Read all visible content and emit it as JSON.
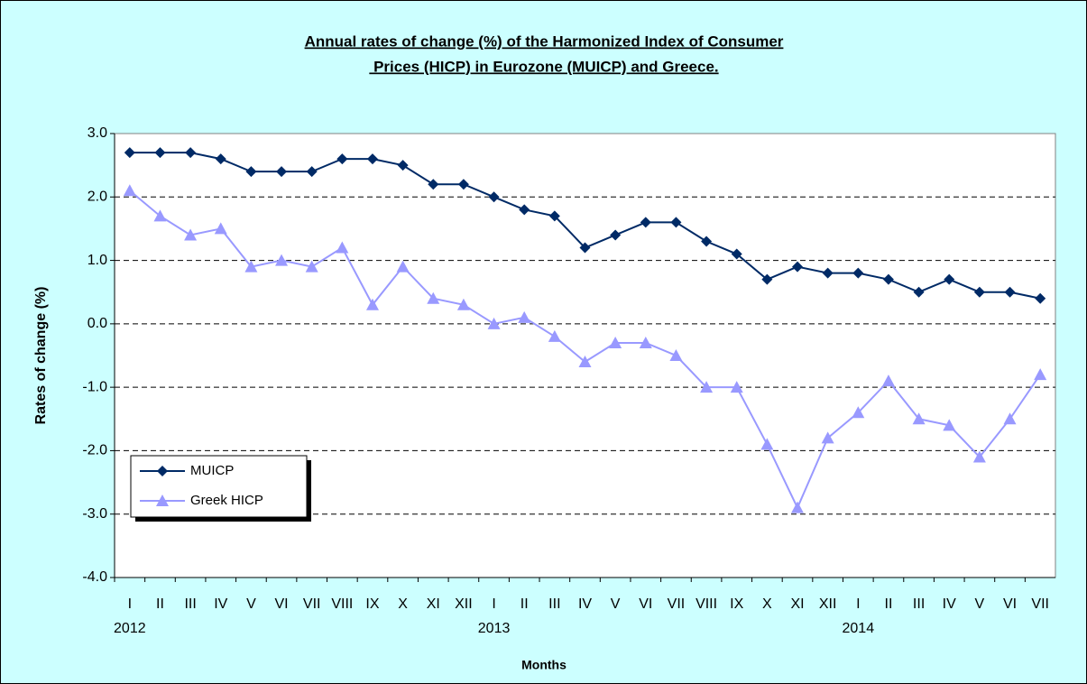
{
  "chart_data": {
    "type": "line",
    "title": [
      "Annual rates of change (%) of the Harmonized Index of Consumer",
      " Prices (HICP) in Eurozone (MUICP) and Greece."
    ],
    "x_label": "Months",
    "y_label": "Rates of change (%)",
    "categories": [
      "I",
      "II",
      "III",
      "IV",
      "V",
      "VI",
      "VII",
      "VIII",
      "IX",
      "X",
      "XI",
      "XII",
      "I",
      "II",
      "III",
      "IV",
      "V",
      "VI",
      "VII",
      "VIII",
      "IX",
      "X",
      "XI",
      "XII",
      "I",
      "II",
      "III",
      "IV",
      "V",
      "VI",
      "VII"
    ],
    "year_labels": [
      "2012",
      null,
      null,
      null,
      null,
      null,
      null,
      null,
      null,
      null,
      null,
      null,
      "2013",
      null,
      null,
      null,
      null,
      null,
      null,
      null,
      null,
      null,
      null,
      null,
      "2014",
      null,
      null,
      null,
      null,
      null,
      null
    ],
    "series": [
      {
        "name": "MUICP",
        "color": "#002a66",
        "marker": "diamond",
        "values": [
          2.7,
          2.7,
          2.7,
          2.6,
          2.4,
          2.4,
          2.4,
          2.6,
          2.6,
          2.5,
          2.2,
          2.2,
          2.0,
          1.8,
          1.7,
          1.2,
          1.4,
          1.6,
          1.6,
          1.3,
          1.1,
          0.7,
          0.9,
          0.8,
          0.8,
          0.7,
          0.5,
          0.7,
          0.5,
          0.5,
          0.4
        ]
      },
      {
        "name": "Greek HICP",
        "color": "#9999ff",
        "marker": "triangle",
        "values": [
          2.1,
          1.7,
          1.4,
          1.5,
          0.9,
          1.0,
          0.9,
          1.2,
          0.3,
          0.9,
          0.4,
          0.3,
          0.0,
          0.1,
          -0.2,
          -0.6,
          -0.3,
          -0.3,
          -0.5,
          -1.0,
          -1.0,
          -1.9,
          -2.9,
          -1.8,
          -1.4,
          -0.9,
          -1.5,
          -1.6,
          -2.1,
          -1.5,
          -0.8
        ]
      }
    ],
    "ylim": [
      -4,
      3
    ],
    "yticks": [
      {
        "value": -4,
        "label": "-4.0"
      },
      {
        "value": -3,
        "label": "-3.0"
      },
      {
        "value": -2,
        "label": "-2.0"
      },
      {
        "value": -1,
        "label": "-1.0"
      },
      {
        "value": 0,
        "label": "0.0"
      },
      {
        "value": 1,
        "label": "1.0"
      },
      {
        "value": 2,
        "label": "2.0"
      },
      {
        "value": 3,
        "label": "3.0"
      }
    ],
    "grid": true,
    "legend": "lower left"
  }
}
